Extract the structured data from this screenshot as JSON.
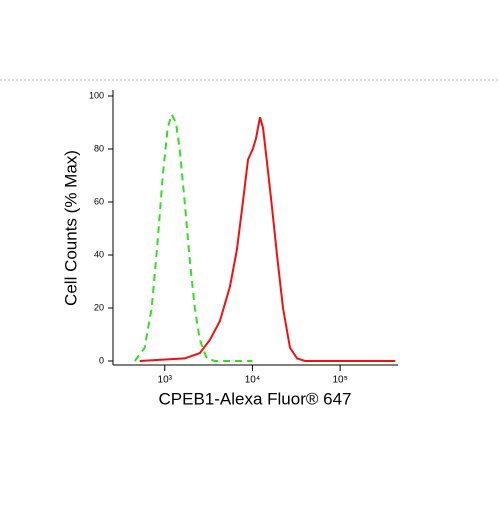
{
  "chart_data": {
    "type": "line",
    "ylabel": "Cell Counts (% Max)",
    "xlabel": "CPEB1-Alexa Fluor® 647",
    "xscale": "log",
    "xlim": [
      257,
      457000
    ],
    "ylim": [
      0,
      100
    ],
    "xticks": [
      {
        "value": 1000,
        "label": "10³"
      },
      {
        "value": 10000,
        "label": "10⁴"
      },
      {
        "value": 100000,
        "label": "10⁵"
      }
    ],
    "yticks": [
      0,
      20,
      40,
      60,
      80,
      100
    ],
    "series": [
      {
        "color": "#33dd22",
        "dashed": true,
        "x": [
          455,
          590,
          710,
          830,
          950,
          1080,
          1200,
          1340,
          1480,
          1690,
          1930,
          2200,
          2510,
          3020,
          3720,
          10000
        ],
        "values": [
          0,
          5,
          20,
          45,
          70,
          88,
          93,
          90,
          80,
          60,
          38,
          20,
          8,
          1,
          0,
          0
        ]
      },
      {
        "color": "#ee1111",
        "dashed": false,
        "x": [
          518,
          1690,
          2510,
          3270,
          4250,
          5530,
          6650,
          7790,
          8890,
          10100,
          10970,
          12190,
          13190,
          14650,
          16710,
          19060,
          22320,
          26830,
          32270,
          39810,
          426000
        ],
        "values": [
          0,
          1,
          3,
          8,
          15,
          28,
          42,
          60,
          76,
          80,
          84,
          92,
          88,
          75,
          58,
          40,
          20,
          5,
          1,
          0,
          0
        ]
      }
    ]
  }
}
